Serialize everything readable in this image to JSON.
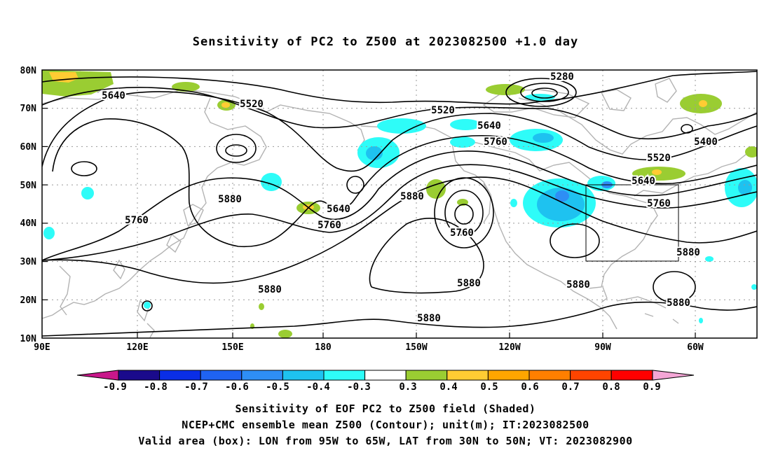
{
  "title": "Sensitivity of PC2 to Z500 at 2023082500 +1.0 day",
  "map": {
    "lat_labels": [
      "80N",
      "70N",
      "60N",
      "50N",
      "40N",
      "30N",
      "20N",
      "10N"
    ],
    "lon_labels": [
      "90E",
      "120E",
      "150E",
      "180",
      "150W",
      "120W",
      "90W",
      "60W"
    ],
    "contour_labels": [
      "5280",
      "5400",
      "5520",
      "5520",
      "5520",
      "5640",
      "5640",
      "5640",
      "5640",
      "5760",
      "5760",
      "5760",
      "5760",
      "5760",
      "5880",
      "5880",
      "5880",
      "5880",
      "5880",
      "5880",
      "5880"
    ],
    "valid_box": {
      "lon": [
        "95W",
        "65W"
      ],
      "lat": [
        "30N",
        "50N"
      ]
    }
  },
  "colorbar": {
    "labels": [
      "-0.9",
      "-0.8",
      "-0.7",
      "-0.6",
      "-0.5",
      "-0.4",
      "-0.3",
      "0.3",
      "0.4",
      "0.5",
      "0.6",
      "0.7",
      "0.8",
      "0.9"
    ],
    "colors": [
      "#1a0a8c",
      "#0a2ee6",
      "#1f63f2",
      "#2e8ef5",
      "#1ec2f0",
      "#2efcf8",
      "#ffffff",
      "#9acd32",
      "#ffcc33",
      "#ffa500",
      "#ff7f00",
      "#ff4400",
      "#ff0000"
    ],
    "left_arrow_color": "#c8178a",
    "right_arrow_color": "#f4a6d6"
  },
  "captions": {
    "line1": "Sensitivity of EOF PC2 to Z500 field (Shaded)",
    "line2": "NCEP+CMC ensemble mean Z500 (Contour); unit(m); IT:2023082500",
    "line3": "Valid area (box): LON from 95W to 65W, LAT from 30N to 50N; VT: 2023082900"
  }
}
